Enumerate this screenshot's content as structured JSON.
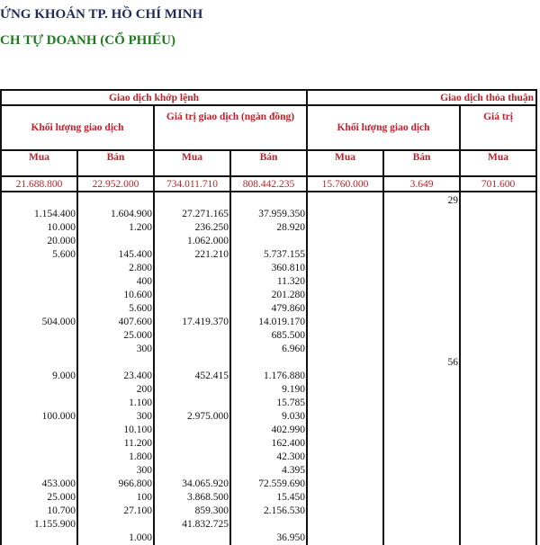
{
  "header": {
    "title": "ỨNG KHOÁN TP. HỒ CHÍ MINH",
    "subtitle": "CH TỰ DOANH (CỔ PHIẾU)"
  },
  "table": {
    "group_matched": "Giao dịch khớp lệnh",
    "group_negotiated": "Giao dịch thỏa thuận",
    "volume": "Khối lượng giao dịch",
    "value": "Giá trị giao dịch (ngàn đồng)",
    "value_partial": "Giá trị",
    "buy": "Mua",
    "sell": "Bán",
    "totals": [
      "21.688.800",
      "22.952.000",
      "734.011.710",
      "808.442.235",
      "15.760.000",
      "3.649",
      "701.600"
    ],
    "rows": [
      [
        "",
        "",
        "",
        "",
        "",
        "29"
      ],
      [
        "1.154.400",
        "1.604.900",
        "27.271.165",
        "37.959.350",
        "",
        ""
      ],
      [
        "10.000",
        "1.200",
        "236.250",
        "28.920",
        "",
        ""
      ],
      [
        "20.000",
        "",
        "1.062.000",
        "",
        "",
        ""
      ],
      [
        "5.600",
        "145.400",
        "221.210",
        "5.737.155",
        "",
        ""
      ],
      [
        "",
        "2.800",
        "",
        "360.810",
        "",
        ""
      ],
      [
        "",
        "400",
        "",
        "11.320",
        "",
        ""
      ],
      [
        "",
        "10.600",
        "",
        "201.280",
        "",
        ""
      ],
      [
        "",
        "5.600",
        "",
        "479.860",
        "",
        ""
      ],
      [
        "504.000",
        "407.600",
        "17.419.370",
        "14.019.170",
        "",
        ""
      ],
      [
        "",
        "25.000",
        "",
        "685.500",
        "",
        ""
      ],
      [
        "",
        "300",
        "",
        "6.960",
        "",
        ""
      ],
      [
        "",
        "",
        "",
        "",
        "",
        "56"
      ],
      [
        "9.000",
        "23.400",
        "452.415",
        "1.176.880",
        "",
        ""
      ],
      [
        "",
        "200",
        "",
        "9.190",
        "",
        ""
      ],
      [
        "",
        "1.100",
        "",
        "15.785",
        "",
        ""
      ],
      [
        "100.000",
        "300",
        "2.975.000",
        "9.030",
        "",
        ""
      ],
      [
        "",
        "10.100",
        "",
        "402.990",
        "",
        ""
      ],
      [
        "",
        "11.200",
        "",
        "162.400",
        "",
        ""
      ],
      [
        "",
        "1.800",
        "",
        "42.300",
        "",
        ""
      ],
      [
        "",
        "300",
        "",
        "4.395",
        "",
        ""
      ],
      [
        "453.000",
        "966.800",
        "34.065.920",
        "72.559.690",
        "",
        ""
      ],
      [
        "25.000",
        "100",
        "3.868.500",
        "15.450",
        "",
        ""
      ],
      [
        "10.700",
        "27.100",
        "859.300",
        "2.156.530",
        "",
        ""
      ],
      [
        "1.155.900",
        "",
        "41.832.725",
        "",
        "",
        ""
      ],
      [
        "",
        "1.000",
        "",
        "36.950",
        "",
        ""
      ]
    ]
  }
}
